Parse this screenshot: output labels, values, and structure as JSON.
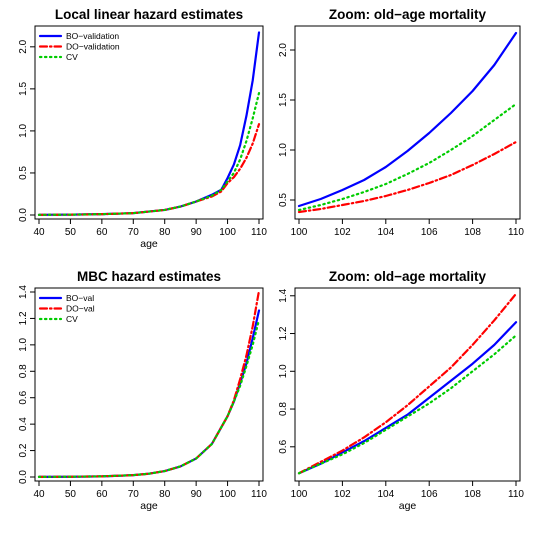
{
  "chart_data": [
    {
      "type": "line",
      "title": "Local linear hazard estimates",
      "xlabel": "age",
      "ylabel": "",
      "xlim": [
        40,
        110
      ],
      "ylim": [
        0,
        2.2
      ],
      "xticks": [
        40,
        50,
        60,
        70,
        80,
        90,
        100,
        110
      ],
      "yticks": [
        0.0,
        0.5,
        1.0,
        1.5,
        2.0
      ],
      "ytick_labels": [
        "0.0",
        "0.5",
        "1.0",
        "1.5",
        "2.0"
      ],
      "legend": "top-left",
      "series": [
        {
          "name": "BO−validation",
          "color": "#0000ff",
          "style": "solid",
          "x": [
            40,
            50,
            60,
            70,
            80,
            85,
            90,
            95,
            98,
            100,
            102,
            104,
            106,
            108,
            110
          ],
          "y": [
            0.002,
            0.004,
            0.01,
            0.022,
            0.06,
            0.1,
            0.16,
            0.24,
            0.3,
            0.44,
            0.6,
            0.83,
            1.18,
            1.6,
            2.17
          ]
        },
        {
          "name": "DO−validation",
          "color": "#ff0000",
          "style": "dashdot",
          "x": [
            40,
            50,
            60,
            70,
            80,
            85,
            90,
            95,
            98,
            100,
            102,
            104,
            106,
            108,
            110
          ],
          "y": [
            0.002,
            0.004,
            0.01,
            0.022,
            0.06,
            0.1,
            0.16,
            0.22,
            0.28,
            0.38,
            0.45,
            0.55,
            0.68,
            0.85,
            1.08
          ]
        },
        {
          "name": "CV",
          "color": "#00cc00",
          "style": "dotted",
          "x": [
            40,
            50,
            60,
            70,
            80,
            85,
            90,
            95,
            98,
            100,
            102,
            104,
            106,
            108,
            110
          ],
          "y": [
            0.002,
            0.004,
            0.01,
            0.022,
            0.06,
            0.1,
            0.16,
            0.23,
            0.3,
            0.4,
            0.5,
            0.66,
            0.88,
            1.15,
            1.45
          ]
        }
      ]
    },
    {
      "type": "line",
      "title": "Zoom: old−age mortality",
      "xlabel": "",
      "ylabel": "",
      "xlim": [
        100,
        110
      ],
      "ylim": [
        0.35,
        2.2
      ],
      "xticks": [
        100,
        102,
        104,
        106,
        108,
        110
      ],
      "yticks": [
        0.5,
        1.0,
        1.5,
        2.0
      ],
      "ytick_labels": [
        "0.5",
        "1.0",
        "1.5",
        "2.0"
      ],
      "series": [
        {
          "color": "#0000ff",
          "style": "solid",
          "x": [
            100,
            101,
            102,
            103,
            104,
            105,
            106,
            107,
            108,
            109,
            110
          ],
          "y": [
            0.44,
            0.51,
            0.6,
            0.7,
            0.83,
            0.99,
            1.17,
            1.37,
            1.59,
            1.85,
            2.17
          ]
        },
        {
          "color": "#ff0000",
          "style": "dashdot",
          "x": [
            100,
            101,
            102,
            103,
            104,
            105,
            106,
            107,
            108,
            109,
            110
          ],
          "y": [
            0.38,
            0.41,
            0.45,
            0.49,
            0.54,
            0.6,
            0.67,
            0.75,
            0.85,
            0.96,
            1.08
          ]
        },
        {
          "color": "#00cc00",
          "style": "dotted",
          "x": [
            100,
            101,
            102,
            103,
            104,
            105,
            106,
            107,
            108,
            109,
            110
          ],
          "y": [
            0.4,
            0.45,
            0.51,
            0.58,
            0.66,
            0.76,
            0.87,
            1.0,
            1.14,
            1.3,
            1.46
          ]
        }
      ]
    },
    {
      "type": "line",
      "title": "MBC hazard estimates",
      "xlabel": "age",
      "ylabel": "",
      "xlim": [
        40,
        110
      ],
      "ylim": [
        0,
        1.4
      ],
      "xticks": [
        40,
        50,
        60,
        70,
        80,
        90,
        100,
        110
      ],
      "yticks": [
        0.0,
        0.2,
        0.4,
        0.6,
        0.8,
        1.0,
        1.2,
        1.4
      ],
      "ytick_labels": [
        "0.0",
        "0.2",
        "0.4",
        "0.6",
        "0.8",
        "1.0",
        "1.2",
        "1.4"
      ],
      "legend": "top-left",
      "series": [
        {
          "name": "BO−val",
          "color": "#0000ff",
          "style": "solid",
          "x": [
            40,
            50,
            60,
            70,
            75,
            80,
            85,
            90,
            95,
            100,
            102,
            104,
            106,
            108,
            110
          ],
          "y": [
            0.001,
            0.002,
            0.005,
            0.014,
            0.025,
            0.045,
            0.08,
            0.14,
            0.25,
            0.46,
            0.57,
            0.71,
            0.86,
            1.05,
            1.26
          ]
        },
        {
          "name": "DO−val",
          "color": "#ff0000",
          "style": "dashdot",
          "x": [
            40,
            50,
            60,
            70,
            75,
            80,
            85,
            90,
            95,
            100,
            102,
            104,
            106,
            108,
            110
          ],
          "y": [
            0.001,
            0.002,
            0.005,
            0.014,
            0.025,
            0.045,
            0.08,
            0.14,
            0.25,
            0.46,
            0.58,
            0.74,
            0.92,
            1.14,
            1.41
          ]
        },
        {
          "name": "CV",
          "color": "#00cc00",
          "style": "dotted",
          "x": [
            40,
            50,
            60,
            70,
            75,
            80,
            85,
            90,
            95,
            100,
            102,
            104,
            106,
            108,
            110
          ],
          "y": [
            0.001,
            0.002,
            0.005,
            0.014,
            0.025,
            0.045,
            0.08,
            0.14,
            0.25,
            0.46,
            0.57,
            0.69,
            0.84,
            1.0,
            1.19
          ]
        }
      ]
    },
    {
      "type": "line",
      "title": "Zoom: old−age mortality",
      "xlabel": "age",
      "ylabel": "",
      "xlim": [
        100,
        110
      ],
      "ylim": [
        0.44,
        1.42
      ],
      "xticks": [
        100,
        102,
        104,
        106,
        108,
        110
      ],
      "yticks": [
        0.6,
        0.8,
        1.0,
        1.2,
        1.4
      ],
      "ytick_labels": [
        "0.6",
        "0.8",
        "1.0",
        "1.2",
        "1.4"
      ],
      "series": [
        {
          "color": "#0000ff",
          "style": "solid",
          "x": [
            100,
            101,
            102,
            103,
            104,
            105,
            106,
            107,
            108,
            109,
            110
          ],
          "y": [
            0.46,
            0.51,
            0.57,
            0.63,
            0.7,
            0.77,
            0.86,
            0.95,
            1.04,
            1.14,
            1.26
          ]
        },
        {
          "color": "#ff0000",
          "style": "dashdot",
          "x": [
            100,
            101,
            102,
            103,
            104,
            105,
            106,
            107,
            108,
            109,
            110
          ],
          "y": [
            0.46,
            0.52,
            0.58,
            0.65,
            0.73,
            0.82,
            0.92,
            1.02,
            1.14,
            1.27,
            1.41
          ]
        },
        {
          "color": "#00cc00",
          "style": "dotted",
          "x": [
            100,
            101,
            102,
            103,
            104,
            105,
            106,
            107,
            108,
            109,
            110
          ],
          "y": [
            0.46,
            0.51,
            0.56,
            0.62,
            0.69,
            0.76,
            0.83,
            0.91,
            1.0,
            1.09,
            1.19
          ]
        }
      ]
    }
  ]
}
